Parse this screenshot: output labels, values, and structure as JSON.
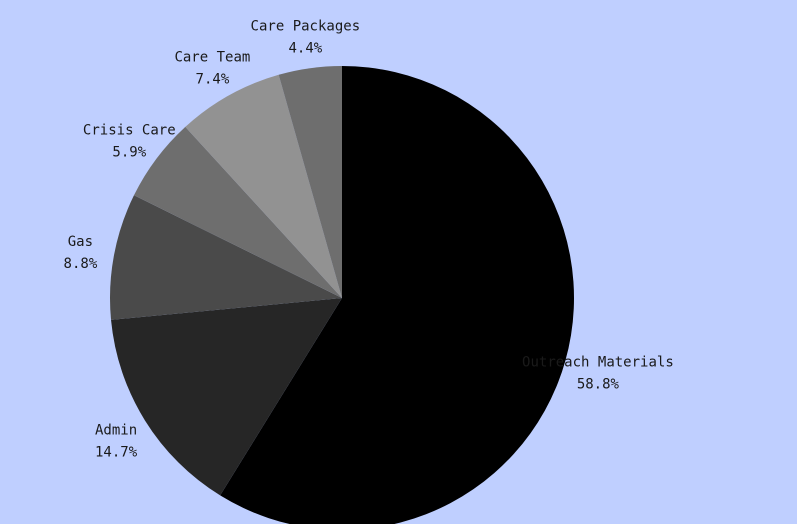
{
  "chart_data": {
    "type": "pie",
    "title": "",
    "slices": [
      {
        "label": "Outreach Materials",
        "value": 58.8,
        "percent_label": "58.8%",
        "color": "#000000"
      },
      {
        "label": "Admin",
        "value": 14.7,
        "percent_label": "14.7%",
        "color": "#262626"
      },
      {
        "label": "Gas",
        "value": 8.8,
        "percent_label": "8.8%",
        "color": "#4a4a4a"
      },
      {
        "label": "Crisis Care",
        "value": 5.9,
        "percent_label": "5.9%",
        "color": "#6e6e6e"
      },
      {
        "label": "Care Team",
        "value": 7.4,
        "percent_label": "7.4%",
        "color": "#929292"
      },
      {
        "label": "Care Packages",
        "value": 4.4,
        "percent_label": "4.4%",
        "color": "#6e6e6e"
      }
    ],
    "start_angle": "12 o'clock",
    "direction": "clockwise",
    "legend": "none",
    "background_color": "#bfcfff"
  }
}
